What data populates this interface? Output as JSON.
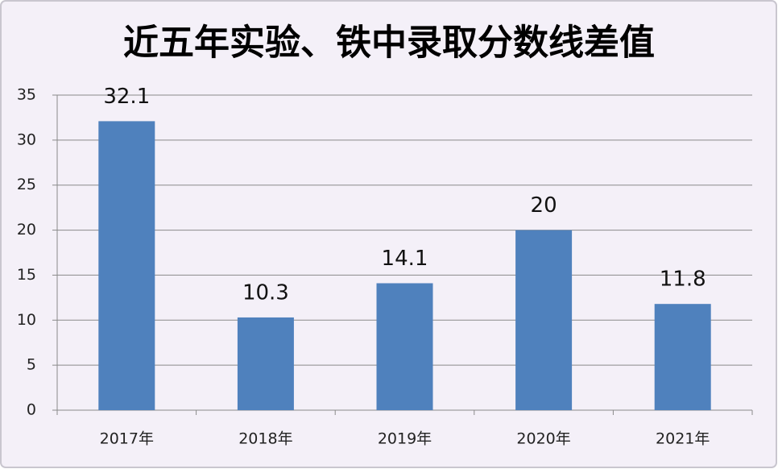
{
  "chart_data": {
    "type": "bar",
    "title": "近五年实验、铁中录取分数线差值",
    "categories": [
      "2017年",
      "2018年",
      "2019年",
      "2020年",
      "2021年"
    ],
    "values": [
      32.1,
      10.3,
      14.1,
      20,
      11.8
    ],
    "color": "#4f81bd",
    "ylim": [
      0,
      35
    ],
    "yticks": [
      0,
      5,
      10,
      15,
      20,
      25,
      30,
      35
    ],
    "grid": true
  }
}
